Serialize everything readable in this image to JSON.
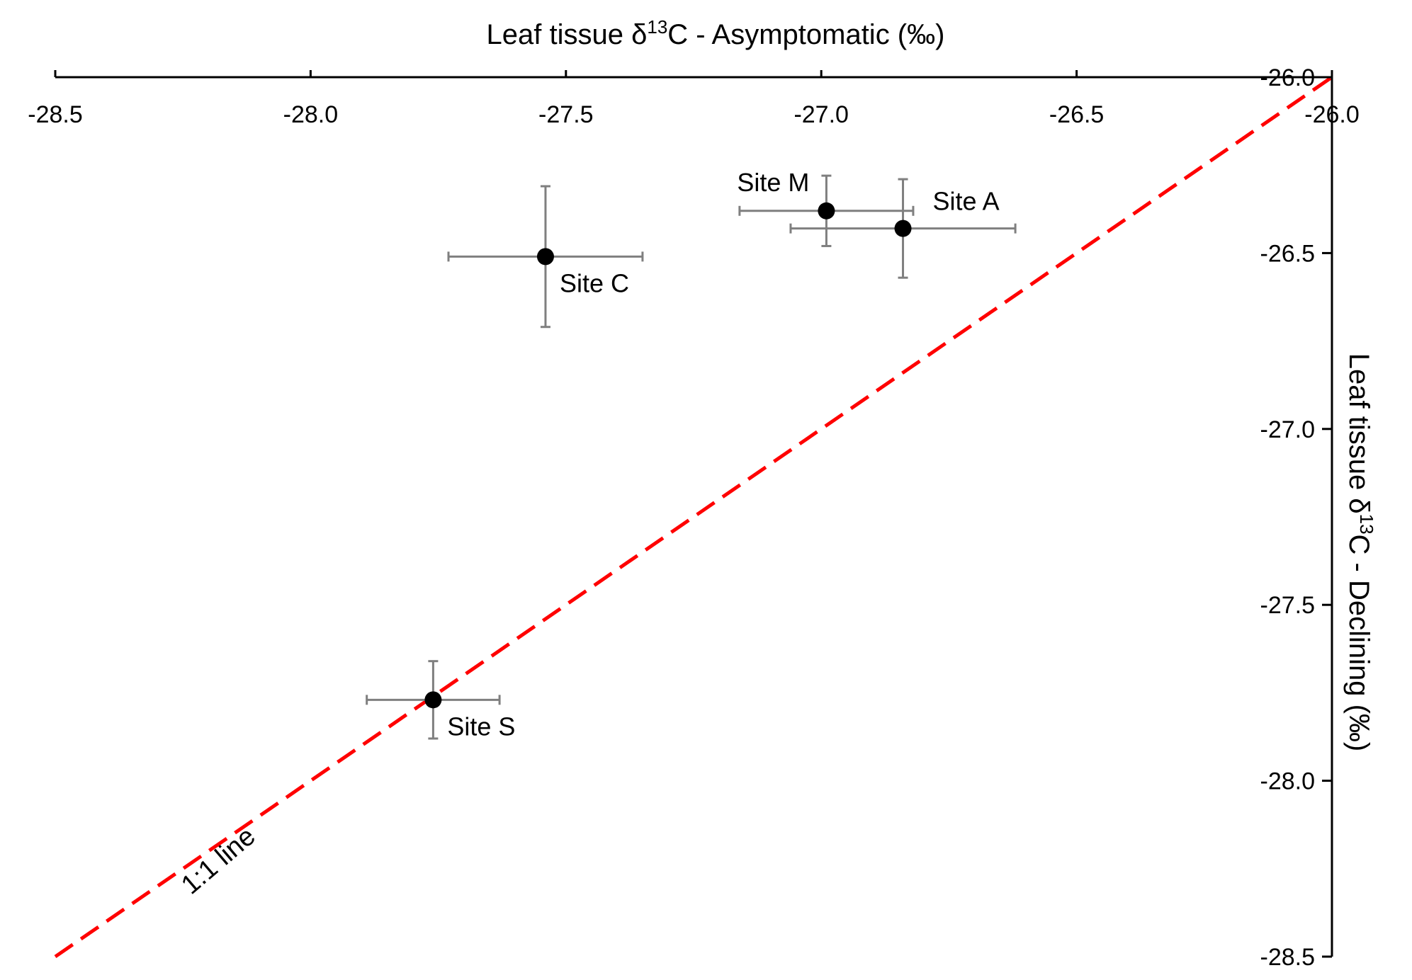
{
  "chart_data": {
    "type": "scatter",
    "title": "",
    "xlabel": "Leaf tissue δ13C - Asymptomatic (‰)",
    "ylabel": "Leaf tissue δ13C - Declining (‰)",
    "xlabel_parts": {
      "before": "Leaf tissue δ",
      "sup": "13",
      "after": "C - Asymptomatic (‰)"
    },
    "ylabel_parts": {
      "before": "Leaf tissue δ",
      "sup": "13",
      "after": "C - Declining (‰)"
    },
    "xlim": [
      -28.5,
      -26.0
    ],
    "ylim": [
      -28.5,
      -26.0
    ],
    "x_ticks": [
      "-28.5",
      "-28.0",
      "-27.5",
      "-27.0",
      "-26.5",
      "-26.0"
    ],
    "y_ticks": [
      "-26.0",
      "-26.5",
      "-27.0",
      "-27.5",
      "-28.0",
      "-28.5"
    ],
    "x_axis_position": "top",
    "y_axis_position": "right",
    "grid": false,
    "points": [
      {
        "label": "Site C",
        "x": -27.54,
        "y": -26.51,
        "x_err": 0.19,
        "y_err": 0.2,
        "label_pos": "below-right"
      },
      {
        "label": "Site M",
        "x": -26.99,
        "y": -26.38,
        "x_err": 0.17,
        "y_err": 0.1,
        "label_pos": "above-left"
      },
      {
        "label": "Site A",
        "x": -26.84,
        "y": -26.43,
        "x_err": 0.22,
        "y_err": 0.14,
        "label_pos": "above-right"
      },
      {
        "label": "Site S",
        "x": -27.76,
        "y": -27.77,
        "x_err": 0.13,
        "y_err": 0.11,
        "label_pos": "below-right"
      }
    ],
    "reference_line": {
      "label": "1:1 line",
      "from": [
        -28.5,
        -28.5
      ],
      "to": [
        -26.0,
        -26.0
      ],
      "color": "#ff0000",
      "style": "dashed"
    },
    "colors": {
      "points": "#000000",
      "error_bars": "#7f7f7f",
      "axes": "#000000"
    }
  }
}
